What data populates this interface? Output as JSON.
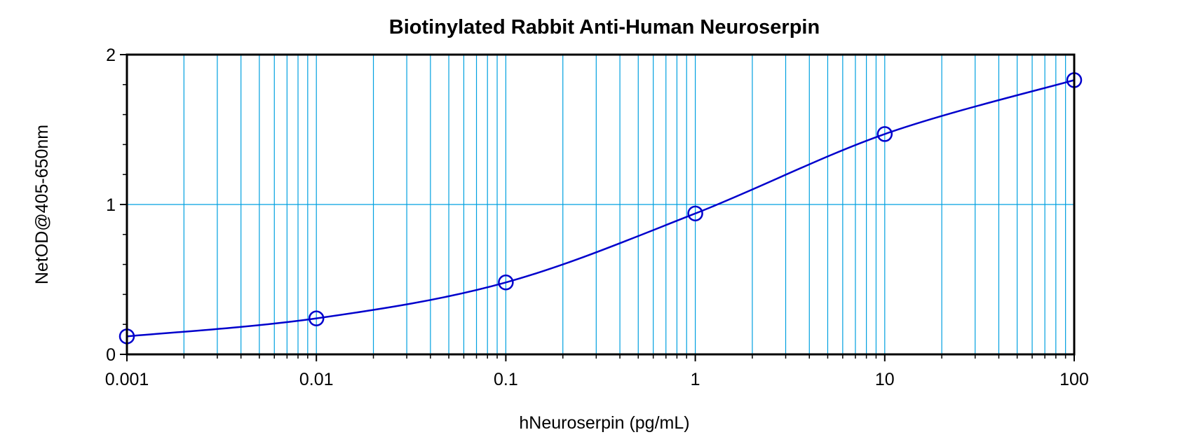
{
  "chart_data": {
    "type": "scatter",
    "title": "Biotinylated Rabbit Anti-Human Neuroserpin",
    "xlabel": "hNeuroserpin (pg/mL)",
    "ylabel": "NetOD@405-650nm",
    "x_scale": "log",
    "xlim": [
      0.001,
      100
    ],
    "ylim": [
      0,
      2
    ],
    "x_ticks": [
      "0.001",
      "0.01",
      "0.1",
      "1",
      "10",
      "100"
    ],
    "y_ticks": [
      "0",
      "1",
      "2"
    ],
    "grid": true,
    "series": [
      {
        "x": [
          0.001,
          0.01,
          0.1,
          1,
          10,
          100
        ],
        "y": [
          0.12,
          0.24,
          0.48,
          0.94,
          1.47,
          1.83
        ]
      }
    ],
    "fit_curve": true,
    "colors": {
      "points": "#0000cc",
      "curve": "#0000cc",
      "grid": "#00a0e0",
      "axes": "#000000"
    }
  }
}
